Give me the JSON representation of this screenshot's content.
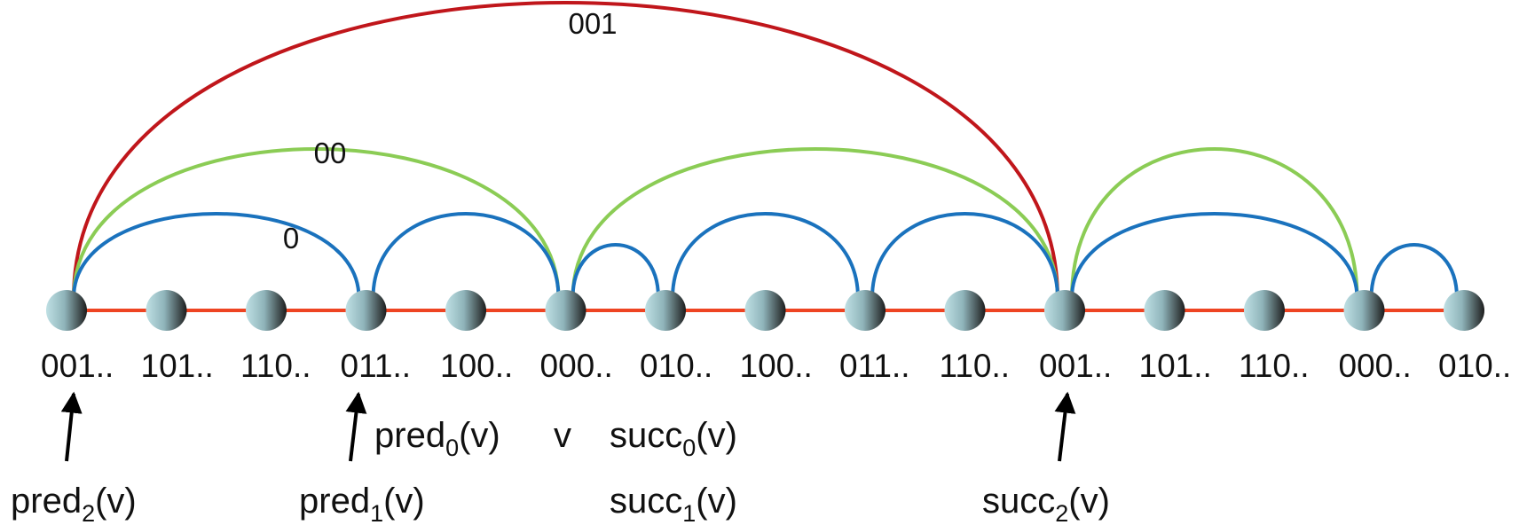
{
  "nodes": [
    {
      "id": "n0",
      "label": "001.."
    },
    {
      "id": "n1",
      "label": "101.."
    },
    {
      "id": "n2",
      "label": "110.."
    },
    {
      "id": "n3",
      "label": "011.."
    },
    {
      "id": "n4",
      "label": "100.."
    },
    {
      "id": "n5",
      "label": "000.."
    },
    {
      "id": "n6",
      "label": "010.."
    },
    {
      "id": "n7",
      "label": "100.."
    },
    {
      "id": "n8",
      "label": "011.."
    },
    {
      "id": "n9",
      "label": "110.."
    },
    {
      "id": "n10",
      "label": "001.."
    },
    {
      "id": "n11",
      "label": "101.."
    },
    {
      "id": "n12",
      "label": "110.."
    },
    {
      "id": "n13",
      "label": "000.."
    },
    {
      "id": "n14",
      "label": "010.."
    }
  ],
  "links": {
    "line": {
      "color": "#ee4422"
    },
    "level0": {
      "label": "0",
      "color": "#1a72bd",
      "arcs": [
        [
          "n0",
          "n3"
        ],
        [
          "n3",
          "n5"
        ],
        [
          "n5",
          "n6"
        ],
        [
          "n6",
          "n8"
        ],
        [
          "n8",
          "n10"
        ],
        [
          "n10",
          "n13"
        ],
        [
          "n13",
          "n14"
        ]
      ]
    },
    "level1": {
      "label": "00",
      "color": "#8bcc55",
      "arcs": [
        [
          "n0",
          "n5"
        ],
        [
          "n5",
          "n10"
        ],
        [
          "n10",
          "n13"
        ]
      ]
    },
    "level2": {
      "label": "001",
      "color": "#c0161b",
      "arcs": [
        [
          "n0",
          "n10"
        ]
      ]
    }
  },
  "annotations": {
    "pred2": {
      "base": "pred",
      "sub": "2",
      "suffix": "(v)",
      "target": "n0"
    },
    "pred1": {
      "base": "pred",
      "sub": "1",
      "suffix": "(v)",
      "target": "n3"
    },
    "pred0": {
      "base": "pred",
      "sub": "0",
      "suffix": "(v)"
    },
    "v": {
      "text": "v"
    },
    "succ0": {
      "base": "succ",
      "sub": "0",
      "suffix": "(v)"
    },
    "succ1": {
      "base": "succ",
      "sub": "1",
      "suffix": "(v)"
    },
    "succ2": {
      "base": "succ",
      "sub": "2",
      "suffix": "(v)",
      "target": "n10"
    }
  }
}
